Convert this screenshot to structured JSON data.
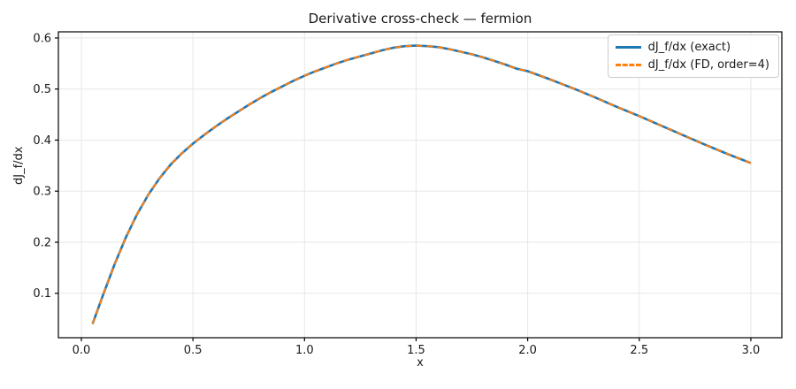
{
  "figure": {
    "title": "Derivative cross-check — fermion"
  },
  "chart_data": {
    "type": "line",
    "title": "Derivative cross-check — fermion",
    "xlabel": "x",
    "ylabel": "dJ_f/dx",
    "xlim": [
      -0.103,
      3.139
    ],
    "ylim": [
      0.013,
      0.612
    ],
    "x_ticks": [
      0.0,
      0.5,
      1.0,
      1.5,
      2.0,
      2.5,
      3.0
    ],
    "y_ticks": [
      0.1,
      0.2,
      0.3,
      0.4,
      0.5,
      0.6
    ],
    "grid": true,
    "legend_position": "upper right",
    "x": [
      0.05,
      0.1,
      0.15,
      0.2,
      0.25,
      0.3,
      0.35,
      0.4,
      0.45,
      0.5,
      0.55,
      0.6,
      0.65,
      0.7,
      0.75,
      0.8,
      0.85,
      0.9,
      0.95,
      1.0,
      1.05,
      1.1,
      1.15,
      1.2,
      1.25,
      1.3,
      1.35,
      1.4,
      1.45,
      1.5,
      1.55,
      1.6,
      1.65,
      1.7,
      1.75,
      1.8,
      1.85,
      1.9,
      1.95,
      2.0,
      2.1,
      2.2,
      2.3,
      2.4,
      2.5,
      2.6,
      2.7,
      2.8,
      2.9,
      3.0
    ],
    "series": [
      {
        "name": "dJ_f/dx (exact)",
        "color": "#1f77b4",
        "style": "solid",
        "line_width": 2.6,
        "values": [
          0.04,
          0.1,
          0.158,
          0.21,
          0.255,
          0.293,
          0.325,
          0.352,
          0.374,
          0.393,
          0.41,
          0.426,
          0.441,
          0.455,
          0.469,
          0.482,
          0.494,
          0.505,
          0.516,
          0.526,
          0.535,
          0.543,
          0.551,
          0.558,
          0.564,
          0.57,
          0.576,
          0.581,
          0.584,
          0.585,
          0.584,
          0.582,
          0.578,
          0.573,
          0.568,
          0.562,
          0.555,
          0.548,
          0.54,
          0.535,
          0.519,
          0.502,
          0.484,
          0.465,
          0.447,
          0.428,
          0.409,
          0.39,
          0.372,
          0.355
        ]
      },
      {
        "name": "dJ_f/dx (FD, order=4)",
        "color": "#ff7f0e",
        "style": "dashed",
        "line_width": 2.0,
        "dash_pattern": "7 5",
        "values": [
          0.04,
          0.1,
          0.158,
          0.21,
          0.255,
          0.293,
          0.325,
          0.352,
          0.374,
          0.393,
          0.41,
          0.426,
          0.441,
          0.455,
          0.469,
          0.482,
          0.494,
          0.505,
          0.516,
          0.526,
          0.535,
          0.543,
          0.551,
          0.558,
          0.564,
          0.57,
          0.576,
          0.581,
          0.584,
          0.585,
          0.584,
          0.582,
          0.578,
          0.573,
          0.568,
          0.562,
          0.555,
          0.548,
          0.54,
          0.535,
          0.519,
          0.502,
          0.484,
          0.465,
          0.447,
          0.428,
          0.409,
          0.39,
          0.372,
          0.355
        ]
      }
    ]
  },
  "style": {
    "grid_color": "#e7e7e7",
    "spine_color": "#000000",
    "tick_label_color": "#1a1a1a",
    "background": "#ffffff"
  }
}
